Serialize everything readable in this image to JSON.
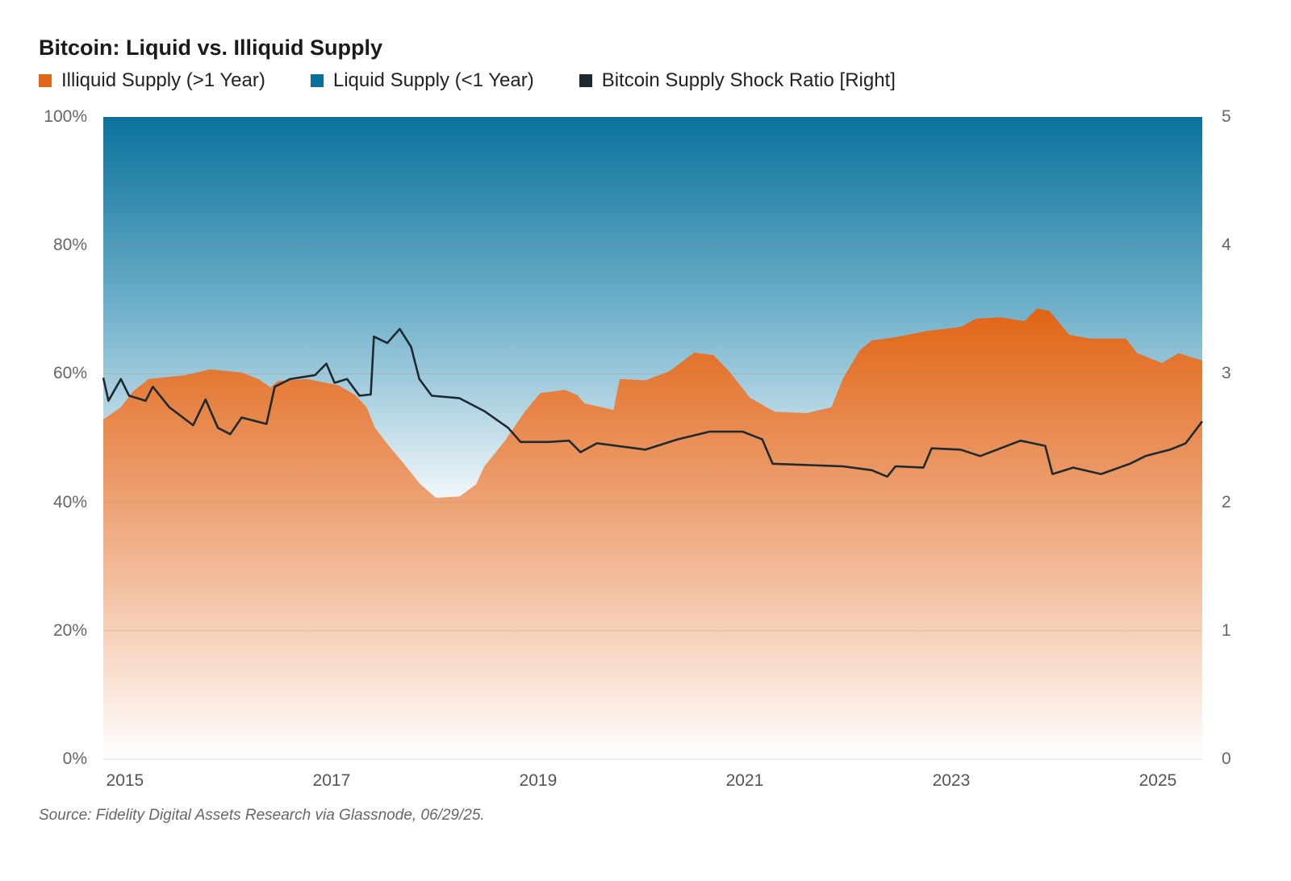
{
  "chart_data": {
    "type": "area",
    "title": "Bitcoin: Liquid vs. Illiquid Supply",
    "legend": [
      {
        "label": "Illiquid Supply (>1 Year)",
        "color": "#e0661a"
      },
      {
        "label": "Liquid Supply (<1 Year)",
        "color": "#0a6f9b"
      },
      {
        "label": "Bitcoin Supply Shock Ratio [Right]",
        "color": "#1f2a30"
      }
    ],
    "legend_position": "top-left",
    "left_axis": {
      "ylim": [
        0,
        100
      ],
      "ticks": [
        "0%",
        "20%",
        "40%",
        "60%",
        "80%",
        "100%"
      ],
      "tick_values": [
        0,
        20,
        40,
        60,
        80,
        100
      ]
    },
    "right_axis": {
      "ylim": [
        0,
        5
      ],
      "ticks": [
        "0",
        "1",
        "2",
        "3",
        "4",
        "5"
      ],
      "tick_values": [
        0,
        1,
        2,
        3,
        4,
        5
      ]
    },
    "x_axis": {
      "xlim": [
        2014.79,
        2025.43
      ],
      "ticks": [
        "2015",
        "2017",
        "2019",
        "2021",
        "2023",
        "2025"
      ],
      "tick_values": [
        2015,
        2017,
        2019,
        2021,
        2023,
        2025
      ]
    },
    "grid": true,
    "series": [
      {
        "name": "Illiquid Supply (>1 Year)",
        "axis": "left",
        "type": "area",
        "x": [
          2014.79,
          2014.96,
          2015.08,
          2015.23,
          2015.59,
          2015.82,
          2016.13,
          2016.29,
          2016.41,
          2016.48,
          2016.76,
          2017.07,
          2017.23,
          2017.34,
          2017.42,
          2017.54,
          2017.7,
          2017.86,
          2018.01,
          2018.24,
          2018.4,
          2018.48,
          2018.67,
          2018.87,
          2019.02,
          2019.26,
          2019.38,
          2019.45,
          2019.73,
          2019.79,
          2020.04,
          2020.27,
          2020.51,
          2020.7,
          2020.86,
          2021.05,
          2021.29,
          2021.6,
          2021.84,
          2021.95,
          2022.11,
          2022.23,
          2022.46,
          2022.77,
          2023.09,
          2023.24,
          2023.48,
          2023.71,
          2023.83,
          2023.95,
          2024.14,
          2024.34,
          2024.69,
          2024.8,
          2025.04,
          2025.2,
          2025.43
        ],
        "y": [
          52.9,
          54.8,
          57.3,
          59.2,
          59.8,
          60.7,
          60.2,
          59.2,
          57.9,
          58.9,
          59.2,
          58.2,
          56.7,
          54.8,
          51.6,
          49.1,
          46.0,
          42.8,
          40.7,
          40.9,
          42.8,
          45.6,
          49.4,
          54.1,
          57.0,
          57.5,
          56.7,
          55.4,
          54.4,
          59.2,
          59.0,
          60.4,
          63.3,
          62.9,
          60.2,
          56.3,
          54.1,
          53.9,
          54.8,
          59.2,
          63.6,
          65.2,
          65.7,
          66.7,
          67.3,
          68.6,
          68.8,
          68.2,
          70.2,
          69.8,
          66.1,
          65.5,
          65.5,
          63.2,
          61.7,
          63.2,
          62.1
        ]
      },
      {
        "name": "Liquid Supply (<1 Year)",
        "axis": "left",
        "type": "area",
        "note_values": "100 minus illiquid"
      },
      {
        "name": "Bitcoin Supply Shock Ratio [Right]",
        "axis": "right",
        "type": "line",
        "x": [
          2014.79,
          2014.84,
          2014.96,
          2015.04,
          2015.2,
          2015.27,
          2015.43,
          2015.66,
          2015.78,
          2015.9,
          2016.02,
          2016.13,
          2016.37,
          2016.45,
          2016.6,
          2016.84,
          2016.95,
          2017.03,
          2017.15,
          2017.27,
          2017.38,
          2017.41,
          2017.54,
          2017.66,
          2017.77,
          2017.85,
          2017.97,
          2018.24,
          2018.48,
          2018.71,
          2018.83,
          2019.1,
          2019.3,
          2019.41,
          2019.57,
          2020.04,
          2020.35,
          2020.66,
          2020.98,
          2021.17,
          2021.27,
          2021.95,
          2022.23,
          2022.38,
          2022.46,
          2022.73,
          2022.81,
          2023.09,
          2023.28,
          2023.67,
          2023.91,
          2023.98,
          2024.18,
          2024.45,
          2024.73,
          2024.88,
          2025.12,
          2025.27,
          2025.43
        ],
        "y": [
          2.97,
          2.79,
          2.96,
          2.83,
          2.79,
          2.9,
          2.74,
          2.6,
          2.8,
          2.58,
          2.53,
          2.66,
          2.61,
          2.9,
          2.96,
          2.99,
          3.08,
          2.93,
          2.96,
          2.83,
          2.84,
          3.29,
          3.24,
          3.35,
          3.21,
          2.96,
          2.83,
          2.81,
          2.71,
          2.58,
          2.47,
          2.47,
          2.48,
          2.39,
          2.46,
          2.41,
          2.49,
          2.55,
          2.55,
          2.49,
          2.3,
          2.28,
          2.25,
          2.2,
          2.28,
          2.27,
          2.42,
          2.41,
          2.36,
          2.48,
          2.44,
          2.22,
          2.27,
          2.22,
          2.3,
          2.36,
          2.41,
          2.46,
          2.63
        ]
      }
    ],
    "source": "Source: Fidelity Digital Assets Research via Glassnode, 06/29/25."
  }
}
